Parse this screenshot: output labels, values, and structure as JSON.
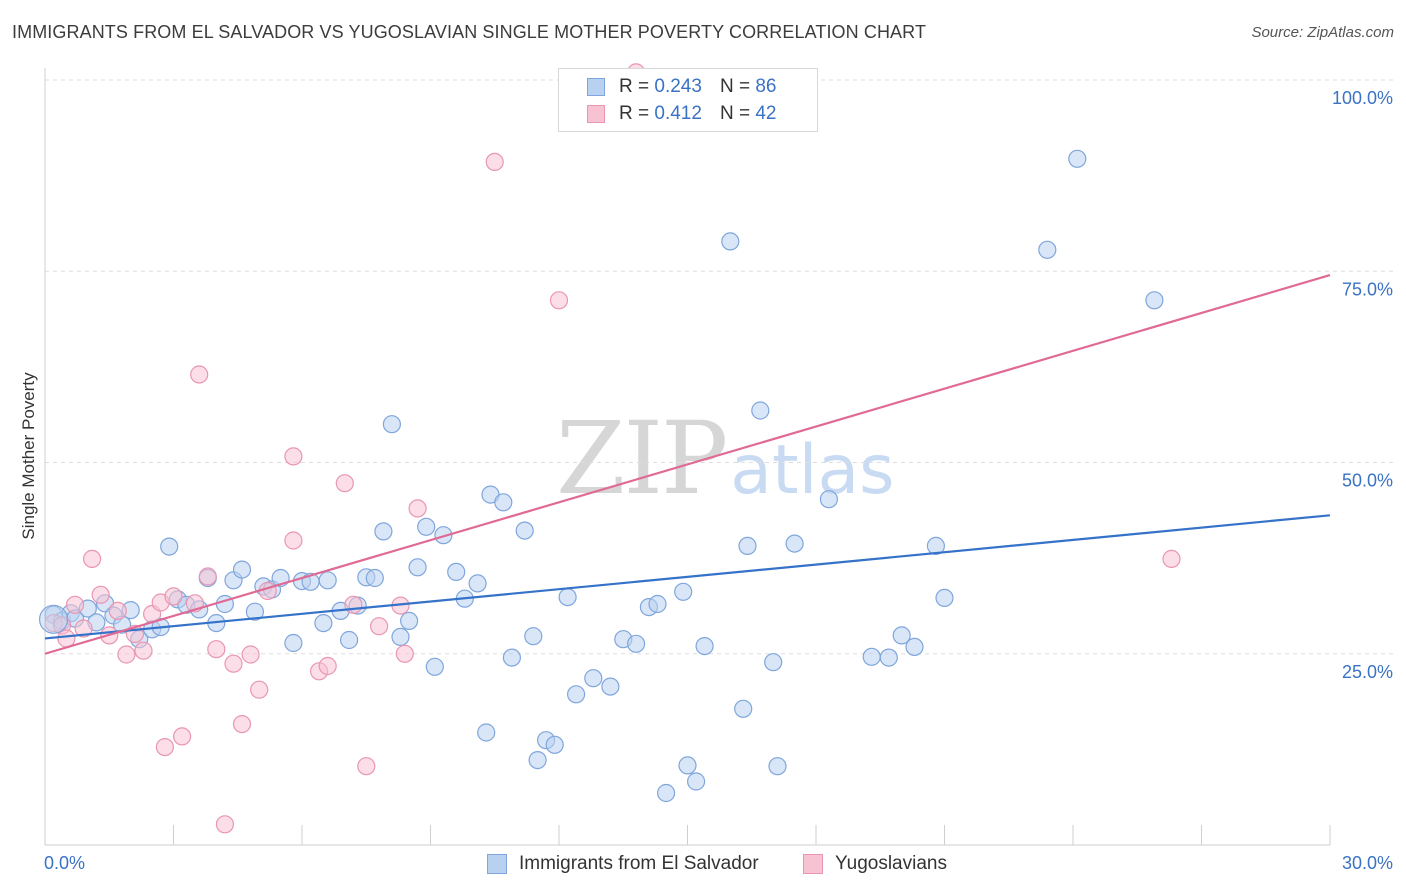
{
  "header": {
    "title": "IMMIGRANTS FROM EL SALVADOR VS YUGOSLAVIAN SINGLE MOTHER POVERTY CORRELATION CHART",
    "source": "Source: ZipAtlas.com"
  },
  "watermark": {
    "zip": "ZIP",
    "atlas": "atlas"
  },
  "legend": {
    "rows": [
      {
        "r_label": "R =",
        "r_value": "0.243",
        "n_label": "N =",
        "n_value": "86"
      },
      {
        "r_label": "R =",
        "r_value": "0.412",
        "n_label": "N =",
        "n_value": "42"
      }
    ]
  },
  "bottom_legend": {
    "items": [
      {
        "label": "Immigrants from El Salvador"
      },
      {
        "label": "Yugoslavians"
      }
    ]
  },
  "colors": {
    "blue_fill": "#b9d1f0",
    "blue_stroke": "#7fa6dc",
    "blue_line": "#3572c9",
    "pink_fill": "#f7c3d3",
    "pink_stroke": "#e996b2",
    "pink_line": "#e06a95",
    "tick_text": "#3a72c4",
    "grid": "#dddddd"
  },
  "chart_data": {
    "type": "scatter",
    "title": "IMMIGRANTS FROM EL SALVADOR VS YUGOSLAVIAN SINGLE MOTHER POVERTY CORRELATION CHART",
    "xlabel": "",
    "ylabel": "Single Mother Poverty",
    "xlim": [
      0,
      30
    ],
    "ylim": [
      0,
      102
    ],
    "x_tick_labels": [
      "0.0%",
      "30.0%"
    ],
    "y_ticks": [
      25,
      50,
      75,
      100
    ],
    "y_tick_labels": [
      "25.0%",
      "50.0%",
      "75.0%",
      "100.0%"
    ],
    "grid": true,
    "legend_position": "top-center",
    "series": [
      {
        "name": "Immigrants from El Salvador",
        "R": 0.243,
        "N": 86,
        "trend": {
          "x": [
            0,
            30
          ],
          "y": [
            27.0,
            43.1
          ]
        },
        "points": [
          [
            0.2,
            30.1
          ],
          [
            0.4,
            29.3
          ],
          [
            0.6,
            30.3
          ],
          [
            0.7,
            29.6
          ],
          [
            1.0,
            30.9
          ],
          [
            1.2,
            29.1
          ],
          [
            1.4,
            31.6
          ],
          [
            1.6,
            30.0
          ],
          [
            1.8,
            28.8
          ],
          [
            2.0,
            30.7
          ],
          [
            2.2,
            26.9
          ],
          [
            2.5,
            28.2
          ],
          [
            2.7,
            28.5
          ],
          [
            2.9,
            39.0
          ],
          [
            3.1,
            32.1
          ],
          [
            3.3,
            31.4
          ],
          [
            3.6,
            30.8
          ],
          [
            3.8,
            34.9
          ],
          [
            4.0,
            29.0
          ],
          [
            4.2,
            31.5
          ],
          [
            4.4,
            34.6
          ],
          [
            4.6,
            36.0
          ],
          [
            4.9,
            30.5
          ],
          [
            5.1,
            33.8
          ],
          [
            5.3,
            33.4
          ],
          [
            5.5,
            34.9
          ],
          [
            5.8,
            26.4
          ],
          [
            6.0,
            34.5
          ],
          [
            6.2,
            34.4
          ],
          [
            6.5,
            29.0
          ],
          [
            6.6,
            34.6
          ],
          [
            6.9,
            30.6
          ],
          [
            7.1,
            26.8
          ],
          [
            7.3,
            31.3
          ],
          [
            7.5,
            35.0
          ],
          [
            7.7,
            34.9
          ],
          [
            7.9,
            41.0
          ],
          [
            8.1,
            55.0
          ],
          [
            8.3,
            27.2
          ],
          [
            8.5,
            29.3
          ],
          [
            8.7,
            36.3
          ],
          [
            8.9,
            41.6
          ],
          [
            9.1,
            23.3
          ],
          [
            9.3,
            40.5
          ],
          [
            9.6,
            35.7
          ],
          [
            9.8,
            32.2
          ],
          [
            10.1,
            34.2
          ],
          [
            10.3,
            14.7
          ],
          [
            10.4,
            45.8
          ],
          [
            10.7,
            44.8
          ],
          [
            10.9,
            24.5
          ],
          [
            11.2,
            41.1
          ],
          [
            11.4,
            27.3
          ],
          [
            11.5,
            11.1
          ],
          [
            11.7,
            13.7
          ],
          [
            11.9,
            13.1
          ],
          [
            12.2,
            32.4
          ],
          [
            12.4,
            19.7
          ],
          [
            12.8,
            21.8
          ],
          [
            13.2,
            20.7
          ],
          [
            13.5,
            26.9
          ],
          [
            13.8,
            26.3
          ],
          [
            14.1,
            31.1
          ],
          [
            14.3,
            31.5
          ],
          [
            14.5,
            6.8
          ],
          [
            14.9,
            33.1
          ],
          [
            15.0,
            10.4
          ],
          [
            15.2,
            8.3
          ],
          [
            15.4,
            26.0
          ],
          [
            16.0,
            78.9
          ],
          [
            16.3,
            17.8
          ],
          [
            16.4,
            39.1
          ],
          [
            16.7,
            56.8
          ],
          [
            17.0,
            23.9
          ],
          [
            17.1,
            10.3
          ],
          [
            17.5,
            39.4
          ],
          [
            18.3,
            45.2
          ],
          [
            19.3,
            24.6
          ],
          [
            19.7,
            24.5
          ],
          [
            20.0,
            27.4
          ],
          [
            20.3,
            25.9
          ],
          [
            20.8,
            39.1
          ],
          [
            21.0,
            32.3
          ],
          [
            23.4,
            77.8
          ],
          [
            24.1,
            89.7
          ],
          [
            25.9,
            71.2
          ]
        ]
      },
      {
        "name": "Yugoslavians",
        "R": 0.412,
        "N": 42,
        "trend": {
          "x": [
            0,
            30
          ],
          "y": [
            25.0,
            74.5
          ]
        },
        "points": [
          [
            0.2,
            29.0
          ],
          [
            0.4,
            28.7
          ],
          [
            0.5,
            27.0
          ],
          [
            0.7,
            31.4
          ],
          [
            0.9,
            28.3
          ],
          [
            1.1,
            37.4
          ],
          [
            1.3,
            32.7
          ],
          [
            1.5,
            27.4
          ],
          [
            1.7,
            30.6
          ],
          [
            1.9,
            24.9
          ],
          [
            2.1,
            27.6
          ],
          [
            2.3,
            25.4
          ],
          [
            2.5,
            30.2
          ],
          [
            2.7,
            31.7
          ],
          [
            2.8,
            12.8
          ],
          [
            3.0,
            32.5
          ],
          [
            3.2,
            14.2
          ],
          [
            3.5,
            31.6
          ],
          [
            3.6,
            61.5
          ],
          [
            3.8,
            35.1
          ],
          [
            4.0,
            25.6
          ],
          [
            4.2,
            2.7
          ],
          [
            4.4,
            23.7
          ],
          [
            4.6,
            15.8
          ],
          [
            4.8,
            24.9
          ],
          [
            5.0,
            20.3
          ],
          [
            5.2,
            33.2
          ],
          [
            5.8,
            50.8
          ],
          [
            5.8,
            39.8
          ],
          [
            6.4,
            22.7
          ],
          [
            6.6,
            23.4
          ],
          [
            7.0,
            47.3
          ],
          [
            7.2,
            31.4
          ],
          [
            7.5,
            10.3
          ],
          [
            7.8,
            28.6
          ],
          [
            8.3,
            31.3
          ],
          [
            8.4,
            25.0
          ],
          [
            8.7,
            44.0
          ],
          [
            10.5,
            89.3
          ],
          [
            12.0,
            71.2
          ],
          [
            13.8,
            101.0
          ],
          [
            26.3,
            37.4
          ]
        ]
      }
    ]
  }
}
